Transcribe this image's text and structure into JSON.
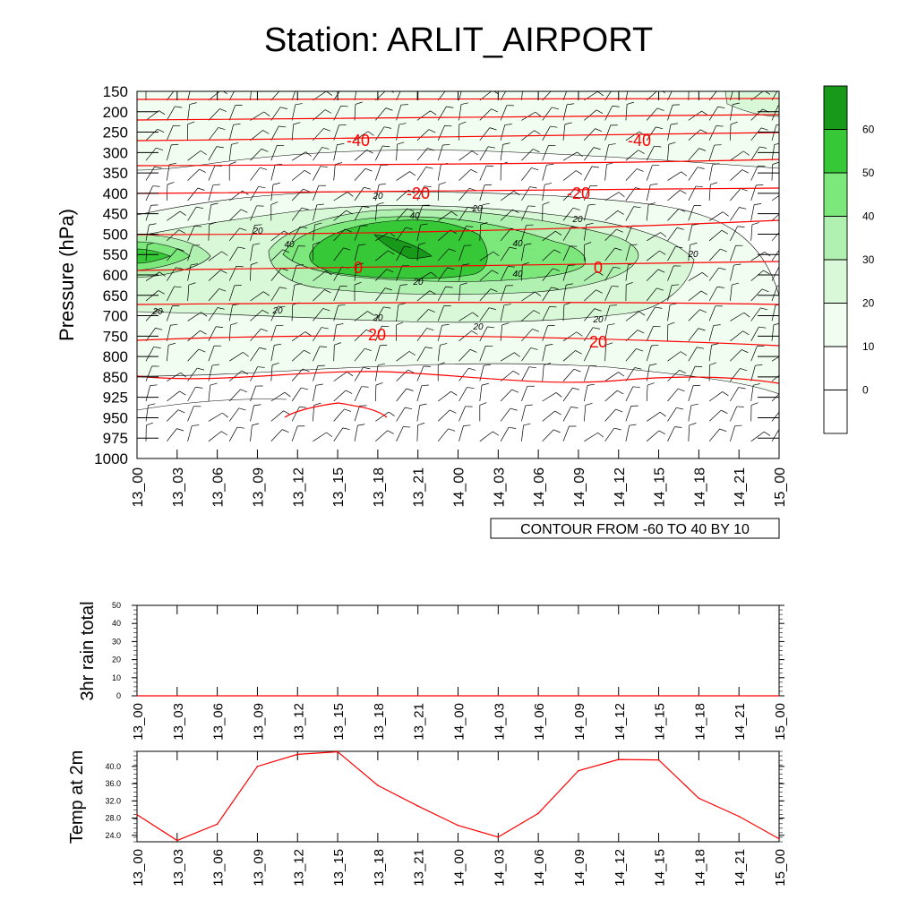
{
  "title": "Station: ARLIT_AIRPORT",
  "colors": {
    "temp_line": "#ff0000",
    "contour_line": "#000000",
    "fill_levels": [
      "#ffffff",
      "#f0fdf0",
      "#d8f8d8",
      "#b0f0b0",
      "#7ce87c",
      "#36c836",
      "#18991a"
    ]
  },
  "time_labels": [
    "13_00",
    "13_03",
    "13_06",
    "13_09",
    "13_12",
    "13_15",
    "13_18",
    "13_21",
    "14_00",
    "14_03",
    "14_06",
    "14_09",
    "14_12",
    "14_15",
    "14_18",
    "14_21",
    "15_00"
  ],
  "chart_data": [
    {
      "type": "heatmap",
      "name": "pressure-time cross section",
      "ylabel": "Pressure (hPa)",
      "pressure_levels": [
        150,
        200,
        250,
        300,
        350,
        400,
        450,
        500,
        550,
        600,
        650,
        700,
        750,
        800,
        850,
        925,
        950,
        975,
        1000
      ],
      "contour_info": "CONTOUR FROM -60 TO 40 BY 10",
      "colorbar": {
        "ticks": [
          0,
          10,
          20,
          30,
          40,
          50,
          60
        ]
      },
      "red_contour_labels": [
        "-40",
        "-40",
        "-20",
        "-20",
        "0",
        "0",
        "20",
        "20"
      ],
      "black_contour_labels": [
        "20",
        "40",
        "20",
        "20",
        "40",
        "40",
        "40",
        "20",
        "20",
        "20",
        "20",
        "20",
        "20",
        "20",
        "20"
      ]
    },
    {
      "type": "line",
      "name": "3hr rain total",
      "ylabel": "3hr rain total",
      "ylim": [
        0,
        50
      ],
      "yticks": [
        0,
        10,
        20,
        30,
        40,
        50
      ],
      "values": [
        0,
        0,
        0,
        0,
        0,
        0,
        0,
        0,
        0,
        0,
        0,
        0,
        0,
        0,
        0,
        0,
        0
      ]
    },
    {
      "type": "line",
      "name": "Temp at 2m",
      "ylabel": "Temp at 2m",
      "ylim": [
        22.5,
        43.5
      ],
      "yticks": [
        "24.0",
        "28.0",
        "32.0",
        "36.0",
        "40.0"
      ],
      "values": [
        28.8,
        22.8,
        26.6,
        40.0,
        42.8,
        43.4,
        35.6,
        30.8,
        26.3,
        23.6,
        29.1,
        39.0,
        41.6,
        41.5,
        32.6,
        28.4,
        23.2
      ]
    }
  ]
}
